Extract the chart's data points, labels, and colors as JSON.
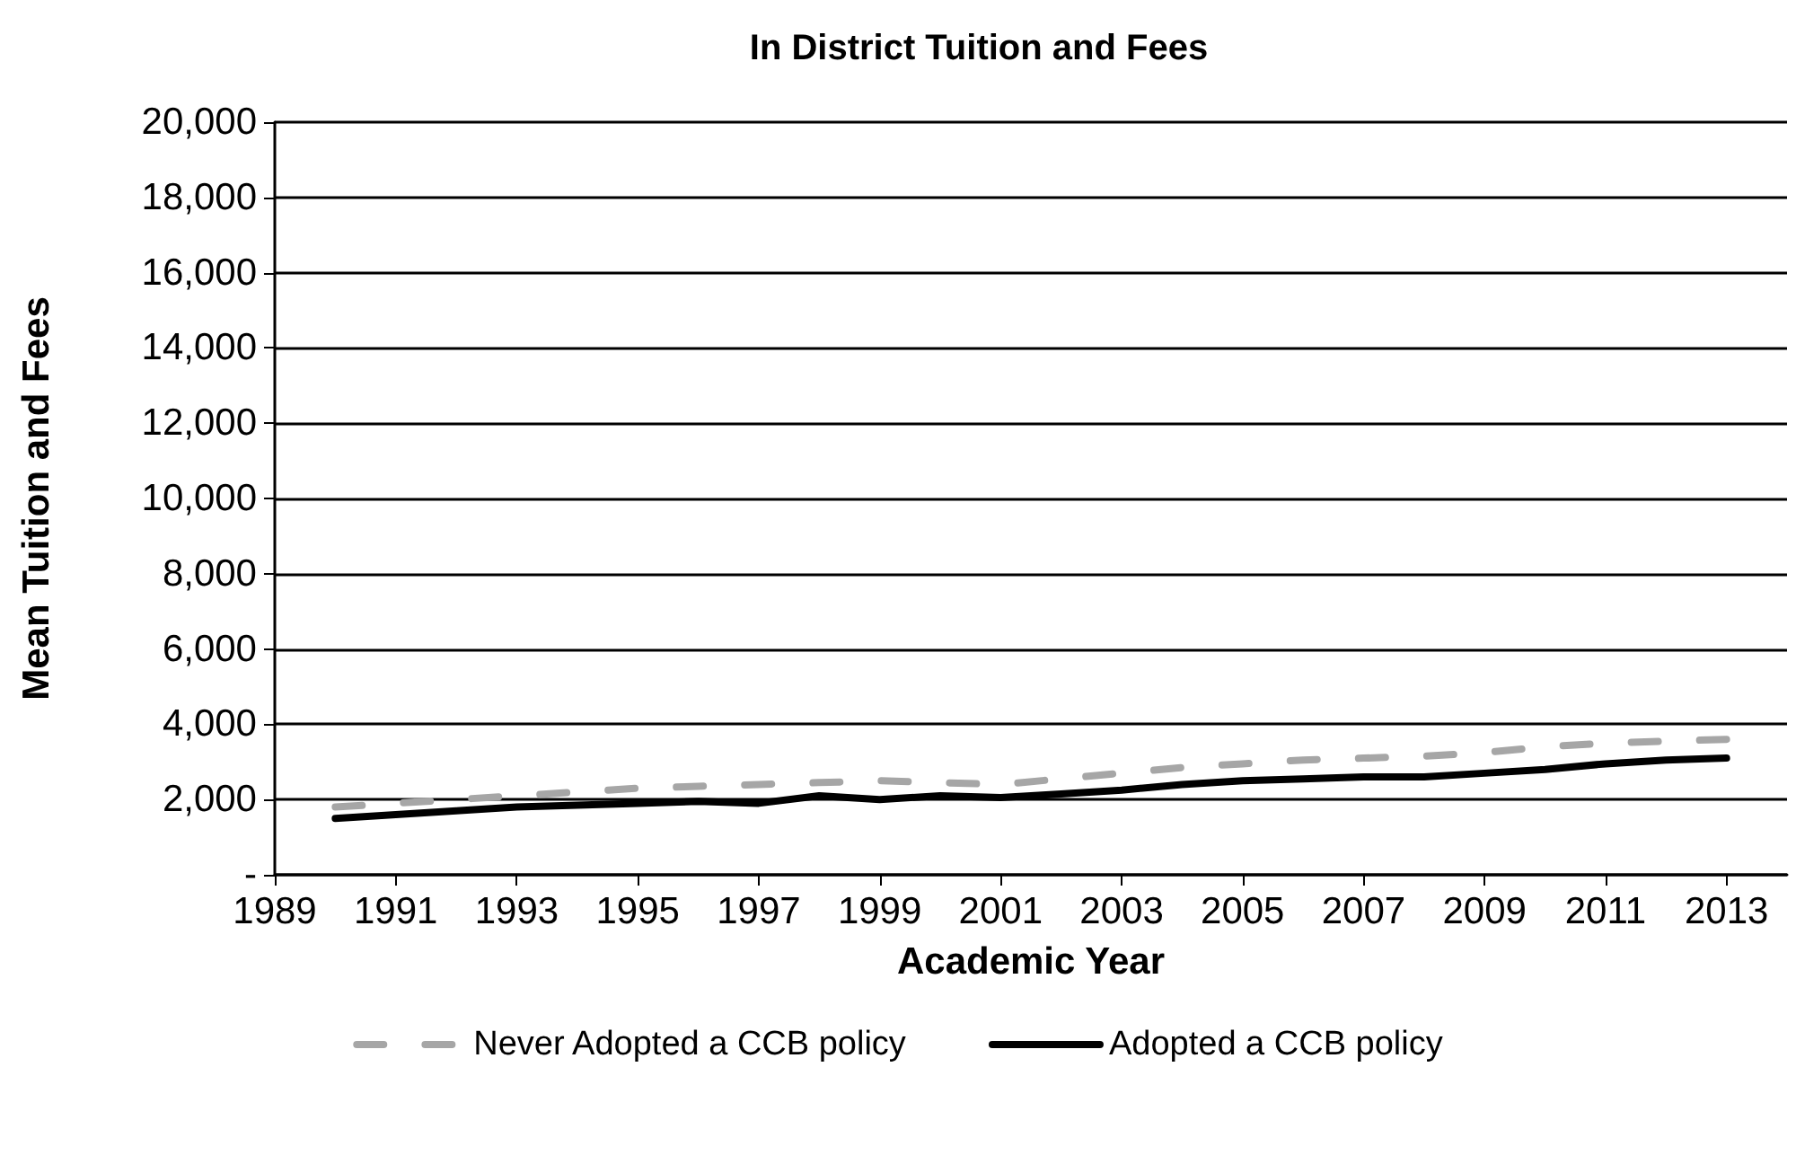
{
  "chart_data": {
    "type": "line",
    "title": "In District Tuition and Fees",
    "xlabel": "Academic Year",
    "ylabel": "Mean Tuition and Fees",
    "x": [
      1990,
      1991,
      1992,
      1993,
      1994,
      1995,
      1996,
      1997,
      1998,
      1999,
      2000,
      2001,
      2002,
      2003,
      2004,
      2005,
      2006,
      2007,
      2008,
      2009,
      2010,
      2011,
      2012,
      2013
    ],
    "series": [
      {
        "name": "Never Adopted a CCB policy",
        "color": "#a6a6a6",
        "line_style": "dashed",
        "values": [
          1800,
          1900,
          2000,
          2100,
          2200,
          2300,
          2350,
          2400,
          2450,
          2500,
          2450,
          2400,
          2550,
          2700,
          2850,
          2950,
          3050,
          3100,
          3150,
          3250,
          3400,
          3500,
          3550,
          3600
        ]
      },
      {
        "name": "Adopted a CCB policy",
        "color": "#000000",
        "line_style": "solid",
        "values": [
          1500,
          1600,
          1700,
          1800,
          1850,
          1900,
          1950,
          1900,
          2100,
          2000,
          2100,
          2050,
          2150,
          2250,
          2400,
          2500,
          2550,
          2600,
          2600,
          2700,
          2800,
          2950,
          3050,
          3100
        ]
      }
    ],
    "xlim": [
      1989,
      2014
    ],
    "xticks": [
      1989,
      1991,
      1993,
      1995,
      1997,
      1999,
      2001,
      2003,
      2005,
      2007,
      2009,
      2011,
      2013
    ],
    "ylim": [
      0,
      20000
    ],
    "yticks": [
      {
        "value": 0,
        "label": "-"
      },
      {
        "value": 2000,
        "label": "2,000"
      },
      {
        "value": 4000,
        "label": "4,000"
      },
      {
        "value": 6000,
        "label": "6,000"
      },
      {
        "value": 8000,
        "label": "8,000"
      },
      {
        "value": 10000,
        "label": "10,000"
      },
      {
        "value": 12000,
        "label": "12,000"
      },
      {
        "value": 14000,
        "label": "14,000"
      },
      {
        "value": 16000,
        "label": "16,000"
      },
      {
        "value": 18000,
        "label": "18,000"
      },
      {
        "value": 20000,
        "label": "20,000"
      }
    ],
    "grid": "y",
    "legend": "bottom"
  }
}
